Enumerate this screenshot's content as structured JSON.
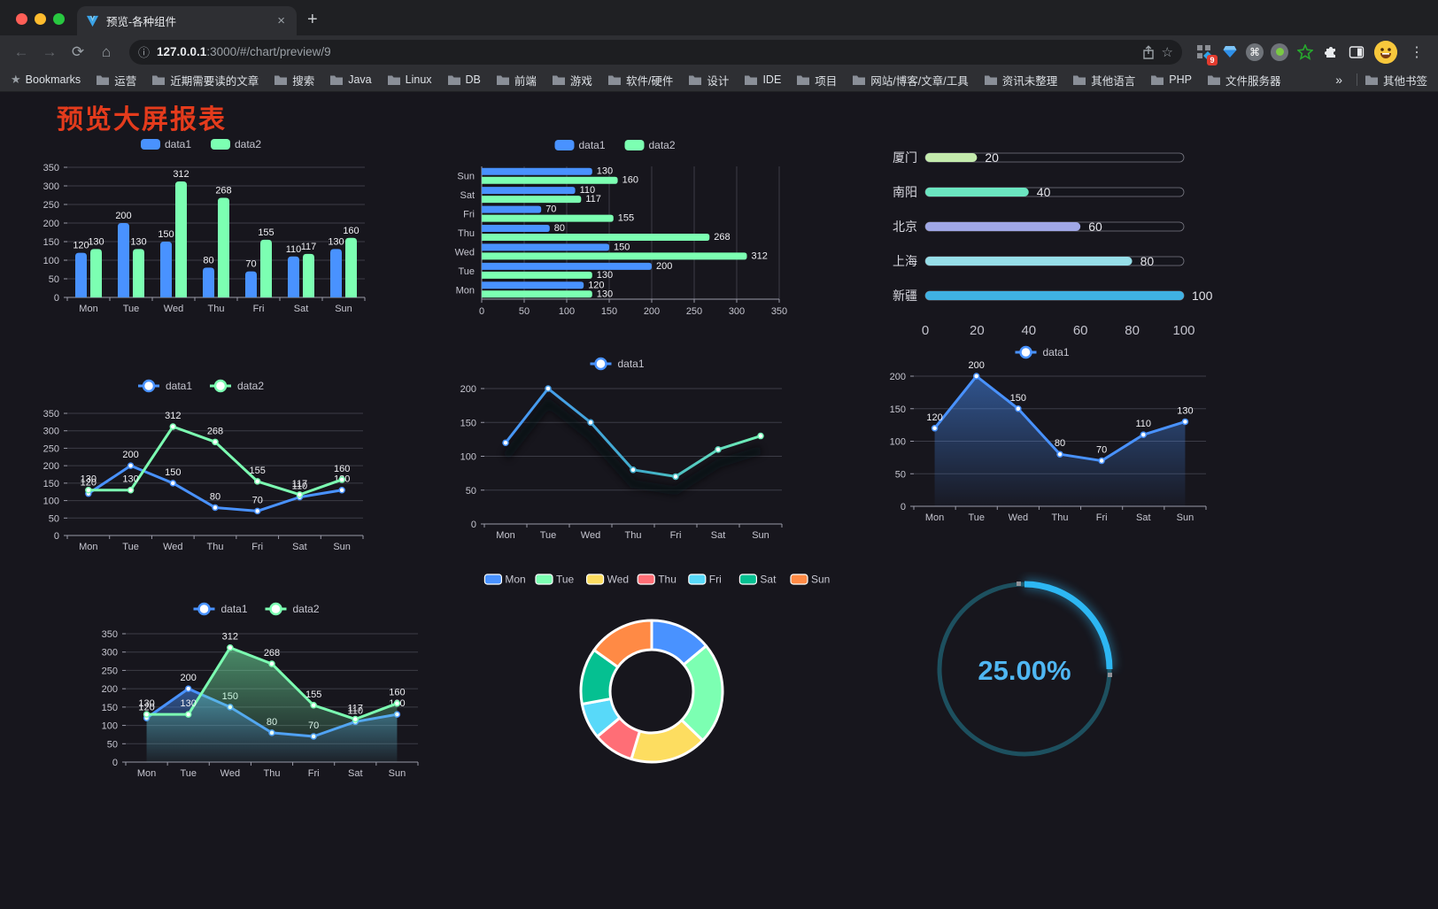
{
  "browser": {
    "tab_title": "预览-各种组件",
    "close_tab_label": "×",
    "new_tab_label": "+",
    "url_host": "127.0.0.1",
    "url_rest": ":3000/#/chart/preview/9",
    "extension_badge": "9",
    "bookmarks_label": "Bookmarks",
    "bookmark_folders": [
      "运营",
      "近期需要读的文章",
      "搜索",
      "Java",
      "Linux",
      "DB",
      "前端",
      "游戏",
      "软件/硬件",
      "设计",
      "IDE",
      "项目",
      "网站/博客/文章/工具",
      "资讯未整理",
      "其他语言",
      "PHP",
      "文件服务器"
    ],
    "bookmarks_overflow": "»",
    "other_bookmarks_label": "其他书签"
  },
  "page": {
    "title": "预览大屏报表"
  },
  "colors": {
    "page_bg": "#17161d",
    "title_red": "#e43b1c",
    "accent_blue": "#4992ff",
    "accent_green": "#7cffb2",
    "tick_text": "#c6c6d0",
    "grid_line": "#3c3c46",
    "axis_line": "#9a9aa8",
    "value_text": "#f0f0f4",
    "pie_palette": [
      "#4992ff",
      "#7cffb2",
      "#fddd60",
      "#ff6e76",
      "#58d9f9",
      "#05c091",
      "#ff8a45"
    ]
  },
  "chart_data": [
    {
      "type": "bar",
      "categories": [
        "Mon",
        "Tue",
        "Wed",
        "Thu",
        "Fri",
        "Sat",
        "Sun"
      ],
      "series": [
        {
          "name": "data1",
          "color": "#4992ff",
          "values": [
            120,
            200,
            150,
            80,
            70,
            110,
            130
          ]
        },
        {
          "name": "data2",
          "color": "#7cffb2",
          "values": [
            130,
            130,
            312,
            268,
            155,
            117,
            160
          ]
        }
      ],
      "ylim": [
        0,
        350
      ],
      "ytick_step": 50,
      "legend_position": "top",
      "grid": true,
      "point_labels": true
    },
    {
      "type": "bar",
      "subtype": "horizontal",
      "categories": [
        "Mon",
        "Tue",
        "Wed",
        "Thu",
        "Fri",
        "Sat",
        "Sun"
      ],
      "display_order": "Sun-at-top",
      "series": [
        {
          "name": "data1",
          "color": "#4992ff",
          "values": [
            120,
            200,
            150,
            80,
            70,
            110,
            130
          ]
        },
        {
          "name": "data2",
          "color": "#7cffb2",
          "values": [
            130,
            130,
            312,
            268,
            155,
            117,
            160
          ]
        }
      ],
      "xlim": [
        0,
        350
      ],
      "xtick_step": 50,
      "legend_position": "top",
      "grid": true,
      "point_labels": true
    },
    {
      "type": "bar",
      "subtype": "progress",
      "xlim": [
        0,
        100
      ],
      "xticks": [
        0,
        20,
        40,
        60,
        80,
        100
      ],
      "items": [
        {
          "label": "厦门",
          "value": 20,
          "color": "#c4ebad"
        },
        {
          "label": "南阳",
          "value": 40,
          "color": "#6be6c1"
        },
        {
          "label": "北京",
          "value": 60,
          "color": "#a0a7e6"
        },
        {
          "label": "上海",
          "value": 80,
          "color": "#96dee8"
        },
        {
          "label": "新疆",
          "value": 100,
          "color": "#3fb1e3"
        }
      ]
    },
    {
      "type": "line",
      "categories": [
        "Mon",
        "Tue",
        "Wed",
        "Thu",
        "Fri",
        "Sat",
        "Sun"
      ],
      "series": [
        {
          "name": "data1",
          "color": "#4992ff",
          "area": false,
          "values": [
            120,
            200,
            150,
            80,
            70,
            110,
            130
          ]
        },
        {
          "name": "data2",
          "color": "#7cffb2",
          "area": false,
          "values": [
            130,
            130,
            312,
            268,
            155,
            117,
            160
          ]
        }
      ],
      "ylim": [
        0,
        350
      ],
      "ytick_step": 50,
      "legend_position": "top",
      "point_labels": true
    },
    {
      "type": "line",
      "subtype": "gradient",
      "categories": [
        "Mon",
        "Tue",
        "Wed",
        "Thu",
        "Fri",
        "Sat",
        "Sun"
      ],
      "series": [
        {
          "name": "data1",
          "legend_color": "#4992ff",
          "gradient": [
            "#4992ff",
            "#41b0c8",
            "#7cffb2"
          ],
          "values": [
            120,
            200,
            150,
            80,
            70,
            110,
            130
          ]
        }
      ],
      "ylim": [
        0,
        200
      ],
      "ytick_step": 50,
      "legend_position": "top",
      "point_labels": false,
      "shadow": true
    },
    {
      "type": "area",
      "categories": [
        "Mon",
        "Tue",
        "Wed",
        "Thu",
        "Fri",
        "Sat",
        "Sun"
      ],
      "series": [
        {
          "name": "data1",
          "color": "#4992ff",
          "area": true,
          "values": [
            120,
            200,
            150,
            80,
            70,
            110,
            130
          ]
        }
      ],
      "ylim": [
        0,
        200
      ],
      "ytick_step": 50,
      "legend_position": "top",
      "point_labels": true
    },
    {
      "type": "area",
      "categories": [
        "Mon",
        "Tue",
        "Wed",
        "Thu",
        "Fri",
        "Sat",
        "Sun"
      ],
      "series": [
        {
          "name": "data1",
          "color": "#4992ff",
          "area": true,
          "values": [
            120,
            200,
            150,
            80,
            70,
            110,
            130
          ]
        },
        {
          "name": "data2",
          "color": "#7cffb2",
          "area": true,
          "values": [
            130,
            130,
            312,
            268,
            155,
            117,
            160
          ]
        }
      ],
      "ylim": [
        0,
        350
      ],
      "ytick_step": 50,
      "legend_position": "top",
      "point_labels": true
    },
    {
      "type": "pie",
      "subtype": "donut",
      "categories": [
        "Mon",
        "Tue",
        "Wed",
        "Thu",
        "Fri",
        "Sat",
        "Sun"
      ],
      "values": [
        120,
        200,
        150,
        80,
        70,
        110,
        130
      ],
      "colors": [
        "#4992ff",
        "#7cffb2",
        "#fddd60",
        "#ff6e76",
        "#58d9f9",
        "#05c091",
        "#ff8a45"
      ],
      "border_color": "#ffffff",
      "legend_position": "top"
    },
    {
      "type": "gauge",
      "value": 25,
      "label": "25.00%",
      "color": "#2db7f3",
      "track_color": "#1d505f"
    }
  ]
}
